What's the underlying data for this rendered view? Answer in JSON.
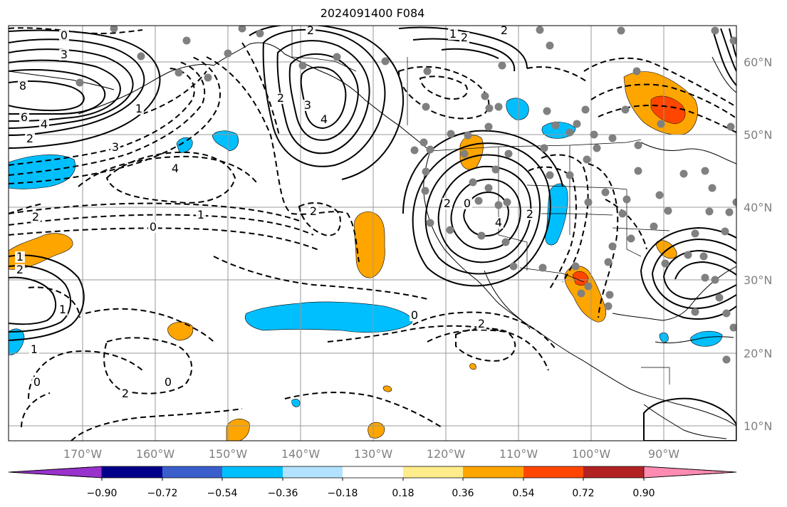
{
  "title": "2024091400 F084",
  "map": {
    "longitude_labels": [
      "170°W",
      "160°W",
      "150°W",
      "140°W",
      "130°W",
      "120°W",
      "110°W",
      "100°W",
      "90°W"
    ],
    "latitude_labels": [
      "60°N",
      "50°N",
      "40°N",
      "30°N",
      "20°N",
      "10°N"
    ],
    "contour_labels": [
      "0",
      "3",
      "8",
      "6",
      "4",
      "2",
      "2",
      "3",
      "4",
      "2",
      "1",
      "0",
      "2",
      "1",
      "2",
      "0",
      "1",
      "0",
      "1",
      "2",
      "3",
      "4",
      "2",
      "1",
      "2",
      "0",
      "2",
      "1",
      "0",
      "2",
      "4",
      "2",
      "2"
    ],
    "shading_colors": {
      "light_blue": "#00bfff",
      "orange": "#ffa500",
      "red": "#ff4500"
    },
    "station_marker_color": "#808080"
  },
  "colorbar": {
    "tick_labels": [
      "−0.90",
      "−0.72",
      "−0.54",
      "−0.36",
      "−0.18",
      "0.18",
      "0.36",
      "0.54",
      "0.72",
      "0.90"
    ],
    "colors": [
      "#9932cc",
      "#00008b",
      "#3a5fcd",
      "#00bfff",
      "#b2e2ff",
      "#ffffff",
      "#ffec8b",
      "#ffa500",
      "#ff4500",
      "#b22222",
      "#ff8cb0"
    ]
  }
}
